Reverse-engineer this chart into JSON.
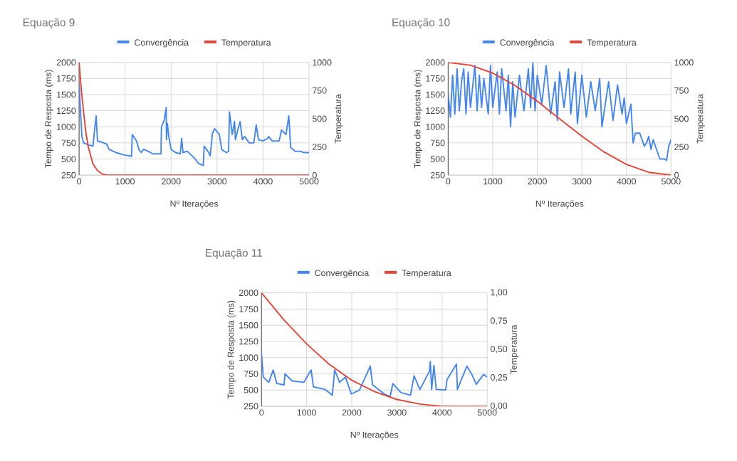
{
  "chart_data": [
    {
      "type": "line",
      "title": "Equação 9",
      "xlabel": "Nº Iterações",
      "ylabel": "Tempo de Resposta (ms)",
      "y2label": "Temperatura",
      "xlim": [
        0,
        5000
      ],
      "xticks": [
        0,
        1000,
        2000,
        3000,
        4000,
        5000
      ],
      "ylim": [
        250,
        2000
      ],
      "yticks": [
        250,
        500,
        750,
        1000,
        1250,
        1500,
        1750,
        2000
      ],
      "y2lim": [
        0,
        1000
      ],
      "y2ticks": [
        0,
        250,
        500,
        750,
        1000
      ],
      "grid": true,
      "legend": "top",
      "marker": "none",
      "series": [
        {
          "name": "Convergência",
          "color": "#4285f4",
          "x": [
            0,
            60,
            100,
            200,
            300,
            370,
            400,
            500,
            600,
            650,
            800,
            1000,
            1100,
            1140,
            1155,
            1250,
            1300,
            1350,
            1400,
            1500,
            1600,
            1700,
            1780,
            1790,
            1850,
            1894,
            1900,
            1920,
            1950,
            2000,
            2100,
            2200,
            2230,
            2260,
            2350,
            2500,
            2600,
            2700,
            2720,
            2800,
            2850,
            2900,
            2950,
            3050,
            3100,
            3200,
            3250,
            3270,
            3330,
            3380,
            3400,
            3450,
            3500,
            3550,
            3600,
            3700,
            3800,
            3850,
            3900,
            4000,
            4100,
            4120,
            4200,
            4350,
            4400,
            4500,
            4560,
            4600,
            4700,
            4800,
            4900,
            5000
          ],
          "values": [
            1650,
            850,
            750,
            720,
            700,
            1170,
            780,
            760,
            730,
            650,
            600,
            560,
            550,
            540,
            880,
            780,
            650,
            600,
            650,
            620,
            580,
            580,
            580,
            1000,
            1100,
            1300,
            800,
            1050,
            850,
            650,
            600,
            580,
            820,
            600,
            620,
            520,
            430,
            400,
            700,
            620,
            550,
            900,
            970,
            880,
            650,
            600,
            620,
            1230,
            880,
            1080,
            800,
            950,
            1080,
            800,
            850,
            750,
            750,
            1030,
            800,
            780,
            820,
            850,
            780,
            780,
            950,
            880,
            1170,
            680,
            620,
            620,
            600,
            600
          ]
        },
        {
          "name": "Temperatura",
          "color": "#ea4335",
          "axis": "y2",
          "x": [
            0,
            50,
            100,
            150,
            200,
            300,
            400,
            500,
            600,
            5000
          ],
          "values": [
            1000,
            750,
            550,
            370,
            250,
            100,
            40,
            10,
            0,
            0
          ]
        }
      ]
    },
    {
      "type": "line",
      "title": "Equação 10",
      "xlabel": "Nº Iterações",
      "ylabel": "Tempo de Resposta (ms)",
      "y2label": "Temperatura",
      "xlim": [
        0,
        5000
      ],
      "xticks": [
        0,
        1000,
        2000,
        3000,
        4000,
        5000
      ],
      "ylim": [
        250,
        2000
      ],
      "yticks": [
        250,
        500,
        750,
        1000,
        1250,
        1500,
        1750,
        2000
      ],
      "y2lim": [
        0,
        1000
      ],
      "y2ticks": [
        0,
        250,
        500,
        750,
        1000
      ],
      "grid": true,
      "legend": "top",
      "marker": "none",
      "series": [
        {
          "name": "Convergência",
          "color": "#4285f4",
          "x": [
            0,
            50,
            100,
            150,
            200,
            250,
            300,
            350,
            400,
            450,
            500,
            600,
            650,
            700,
            750,
            800,
            900,
            950,
            1000,
            1100,
            1150,
            1200,
            1300,
            1350,
            1400,
            1450,
            1500,
            1600,
            1700,
            1800,
            1850,
            1900,
            1950,
            2000,
            2100,
            2200,
            2300,
            2400,
            2450,
            2500,
            2600,
            2700,
            2750,
            2850,
            2900,
            3000,
            3100,
            3200,
            3300,
            3400,
            3450,
            3600,
            3700,
            3800,
            3900,
            3950,
            4000,
            4100,
            4150,
            4200,
            4300,
            4400,
            4450,
            4500,
            4550,
            4600,
            4700,
            4750,
            4850,
            4900,
            4950,
            5000
          ],
          "values": [
            1500,
            1150,
            1800,
            1200,
            1900,
            1250,
            1700,
            1900,
            1200,
            1850,
            1300,
            1950,
            1250,
            1800,
            1300,
            1750,
            1200,
            1950,
            1300,
            1850,
            1200,
            1900,
            1250,
            1800,
            1000,
            1700,
            1150,
            1800,
            1250,
            1900,
            1300,
            2000,
            1250,
            1800,
            1350,
            1950,
            1200,
            1700,
            1100,
            1850,
            1300,
            1900,
            1200,
            1850,
            1050,
            1800,
            1150,
            1700,
            1250,
            1750,
            1000,
            1700,
            1100,
            1650,
            1200,
            1450,
            1050,
            1350,
            750,
            900,
            900,
            700,
            750,
            850,
            650,
            800,
            600,
            500,
            500,
            480,
            700,
            800
          ]
        },
        {
          "name": "Temperatura",
          "color": "#ea4335",
          "axis": "y2",
          "x": [
            0,
            500,
            1000,
            1500,
            2000,
            2500,
            3000,
            3500,
            4000,
            4500,
            5000
          ],
          "values": [
            1000,
            975,
            905,
            795,
            655,
            500,
            345,
            205,
            95,
            25,
            0
          ]
        }
      ]
    },
    {
      "type": "line",
      "title": "Equação 11",
      "xlabel": "Nº Iterações",
      "ylabel": "Tempo de Resposta (ms)",
      "y2label": "Temperatura",
      "xlim": [
        0,
        5000
      ],
      "xticks": [
        0,
        1000,
        2000,
        3000,
        4000,
        5000
      ],
      "ylim": [
        250,
        2000
      ],
      "yticks": [
        250,
        500,
        750,
        1000,
        1250,
        1500,
        1750,
        2000
      ],
      "y2lim": [
        0,
        1
      ],
      "y2ticks": [
        {
          "value": 0,
          "label": "0,00"
        },
        {
          "value": 0.25,
          "label": "0,25"
        },
        {
          "value": 0.5,
          "label": "0,50"
        },
        {
          "value": 0.75,
          "label": "0,75"
        },
        {
          "value": 1,
          "label": "1,00"
        }
      ],
      "grid": true,
      "legend": "top",
      "marker": "none",
      "series": [
        {
          "name": "Convergência",
          "color": "#4285f4",
          "x": [
            0,
            40,
            160,
            260,
            340,
            500,
            520,
            680,
            940,
            1100,
            1150,
            1410,
            1570,
            1620,
            1730,
            1860,
            1990,
            2170,
            2300,
            2410,
            2460,
            2720,
            2850,
            2910,
            3090,
            3300,
            3380,
            3510,
            3720,
            3740,
            3770,
            3820,
            3870,
            4080,
            4110,
            4320,
            4340,
            4550,
            4660,
            4760,
            4920,
            5000
          ],
          "values": [
            1070,
            700,
            620,
            810,
            600,
            580,
            750,
            640,
            620,
            810,
            550,
            510,
            420,
            810,
            620,
            700,
            440,
            500,
            700,
            870,
            580,
            440,
            400,
            600,
            460,
            420,
            720,
            510,
            790,
            940,
            510,
            880,
            510,
            500,
            660,
            900,
            510,
            870,
            740,
            590,
            740,
            700
          ]
        },
        {
          "name": "Temperatura",
          "color": "#ea4335",
          "axis": "y2",
          "x": [
            0,
            500,
            1000,
            1500,
            2000,
            2500,
            3000,
            3500,
            4000,
            5000
          ],
          "values": [
            1,
            0.76,
            0.55,
            0.37,
            0.23,
            0.13,
            0.06,
            0.02,
            0,
            0
          ]
        }
      ]
    }
  ]
}
